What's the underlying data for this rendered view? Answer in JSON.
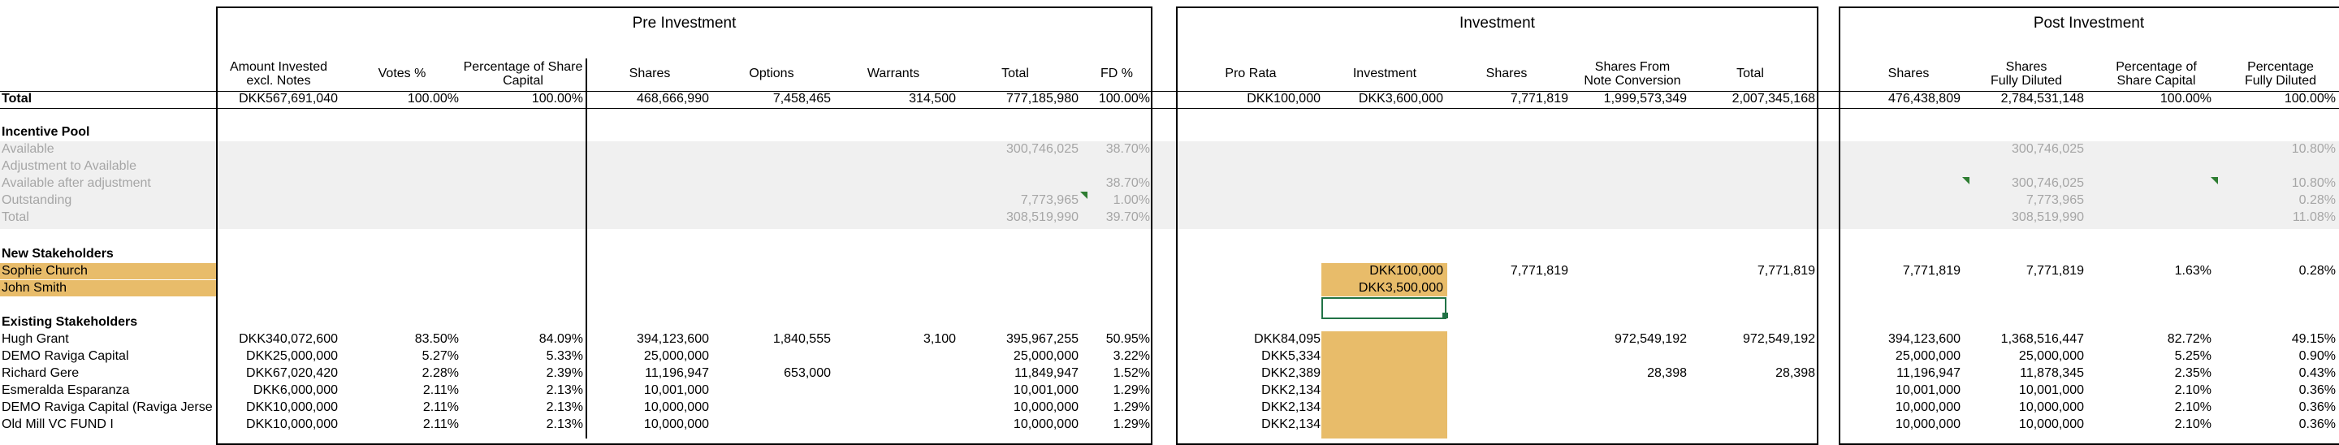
{
  "sections": {
    "pre": "Pre Investment",
    "inv": "Investment",
    "post": "Post Investment"
  },
  "headers": {
    "amount1": "Amount Invested",
    "amount2": "excl. Notes",
    "votes": "Votes %",
    "pct1": "Percentage of Share",
    "pct2": "Capital",
    "shares": "Shares",
    "options": "Options",
    "warrants": "Warrants",
    "total": "Total",
    "fd": "FD %",
    "prorata": "Pro Rata",
    "investment": "Investment",
    "inv_shares": "Shares",
    "snc1": "Shares From",
    "snc2": "Note Conversion",
    "inv_total": "Total",
    "post_shares": "Shares",
    "sfd1": "Shares",
    "sfd2": "Fully Diluted",
    "psc1": "Percentage of",
    "psc2": "Share Capital",
    "pfd1": "Percentage",
    "pfd2": "Fully Diluted"
  },
  "total_row": {
    "label": "Total",
    "amount": "DKK567,691,040",
    "votes": "100.00%",
    "pct": "100.00%",
    "shares": "468,666,990",
    "options": "7,458,465",
    "warrants": "314,500",
    "total": "777,185,980",
    "fd": "100.00%",
    "prorata": "DKK100,000",
    "investment": "DKK3,600,000",
    "inv_shares": "7,771,819",
    "snc": "1,999,573,349",
    "inv_total": "2,007,345,168",
    "post_shares": "476,438,809",
    "sfd": "2,784,531,148",
    "psc": "100.00%",
    "pfd": "100.00%"
  },
  "pool": {
    "title": "Incentive Pool",
    "available": {
      "label": "Available",
      "total": "300,746,025",
      "fd": "38.70%",
      "sfd": "300,746,025",
      "pfd": "10.80%"
    },
    "adjustment": {
      "label": "Adjustment to Available"
    },
    "after": {
      "label": "Available after adjustment",
      "fd": "38.70%",
      "sfd": "300,746,025",
      "pfd": "10.80%"
    },
    "outstanding": {
      "label": "Outstanding",
      "total": "7,773,965",
      "fd": "1.00%",
      "sfd": "7,773,965",
      "pfd": "0.28%"
    },
    "total": {
      "label": "Total",
      "total": "308,519,990",
      "fd": "39.70%",
      "sfd": "308,519,990",
      "pfd": "11.08%"
    }
  },
  "new_stakeholders": {
    "title": "New Stakeholders",
    "rows": [
      {
        "name": "Sophie Church",
        "investment": "DKK100,000",
        "inv_shares": "7,771,819",
        "inv_total": "7,771,819",
        "post_shares": "7,771,819",
        "sfd": "7,771,819",
        "psc": "1.63%",
        "pfd": "0.28%"
      },
      {
        "name": "John Smith",
        "investment": "DKK3,500,000"
      }
    ]
  },
  "existing": {
    "title": "Existing Stakeholders",
    "rows": [
      {
        "name": "Hugh Grant",
        "amount": "DKK340,072,600",
        "votes": "83.50%",
        "pct": "84.09%",
        "shares": "394,123,600",
        "options": "1,840,555",
        "warrants": "3,100",
        "total": "395,967,255",
        "fd": "50.95%",
        "prorata": "DKK84,095",
        "snc": "972,549,192",
        "inv_total": "972,549,192",
        "post_shares": "394,123,600",
        "sfd": "1,368,516,447",
        "psc": "82.72%",
        "pfd": "49.15%"
      },
      {
        "name": "DEMO Raviga Capital",
        "amount": "DKK25,000,000",
        "votes": "5.27%",
        "pct": "5.33%",
        "shares": "25,000,000",
        "options": "",
        "warrants": "",
        "total": "25,000,000",
        "fd": "3.22%",
        "prorata": "DKK5,334",
        "snc": "",
        "inv_total": "",
        "post_shares": "25,000,000",
        "sfd": "25,000,000",
        "psc": "5.25%",
        "pfd": "0.90%"
      },
      {
        "name": "Richard Gere",
        "amount": "DKK67,020,420",
        "votes": "2.28%",
        "pct": "2.39%",
        "shares": "11,196,947",
        "options": "653,000",
        "warrants": "",
        "total": "11,849,947",
        "fd": "1.52%",
        "prorata": "DKK2,389",
        "snc": "28,398",
        "inv_total": "28,398",
        "post_shares": "11,196,947",
        "sfd": "11,878,345",
        "psc": "2.35%",
        "pfd": "0.43%"
      },
      {
        "name": "Esmeralda Esparanza",
        "amount": "DKK6,000,000",
        "votes": "2.11%",
        "pct": "2.13%",
        "shares": "10,001,000",
        "options": "",
        "warrants": "",
        "total": "10,001,000",
        "fd": "1.29%",
        "prorata": "DKK2,134",
        "snc": "",
        "inv_total": "",
        "post_shares": "10,001,000",
        "sfd": "10,001,000",
        "psc": "2.10%",
        "pfd": "0.36%"
      },
      {
        "name": "DEMO Raviga Capital (Raviga Jerse",
        "amount": "DKK10,000,000",
        "votes": "2.11%",
        "pct": "2.13%",
        "shares": "10,000,000",
        "options": "",
        "warrants": "",
        "total": "10,000,000",
        "fd": "1.29%",
        "prorata": "DKK2,134",
        "snc": "",
        "inv_total": "",
        "post_shares": "10,000,000",
        "sfd": "10,000,000",
        "psc": "2.10%",
        "pfd": "0.36%"
      },
      {
        "name": "Old Mill VC FUND I",
        "amount": "DKK10,000,000",
        "votes": "2.11%",
        "pct": "2.13%",
        "shares": "10,000,000",
        "options": "",
        "warrants": "",
        "total": "10,000,000",
        "fd": "1.29%",
        "prorata": "DKK2,134",
        "snc": "",
        "inv_total": "",
        "post_shares": "10,000,000",
        "sfd": "10,000,000",
        "psc": "2.10%",
        "pfd": "0.36%"
      }
    ]
  },
  "colors": {
    "highlight": "#e8bc6a",
    "grey_band": "#f0f0f0",
    "grey_text": "#a6a6a6",
    "selection": "#217346",
    "comment_marker": "#2e7d32"
  }
}
